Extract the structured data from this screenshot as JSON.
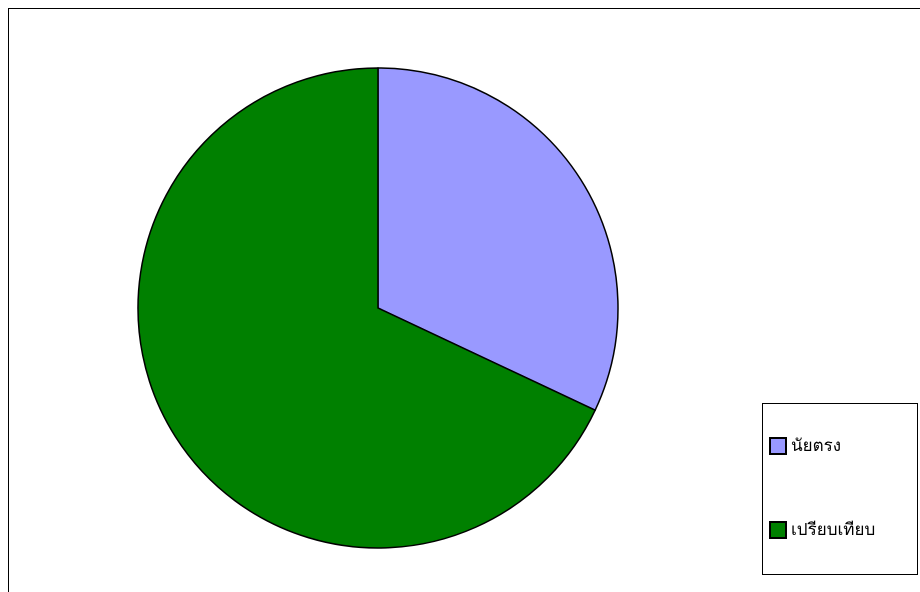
{
  "chart_data": {
    "type": "pie",
    "categories": [
      "นัยตรง",
      "เปรียบเทียบ"
    ],
    "values": [
      32,
      68
    ],
    "colors": [
      "#9999ff",
      "#008000"
    ],
    "legend": "right"
  }
}
